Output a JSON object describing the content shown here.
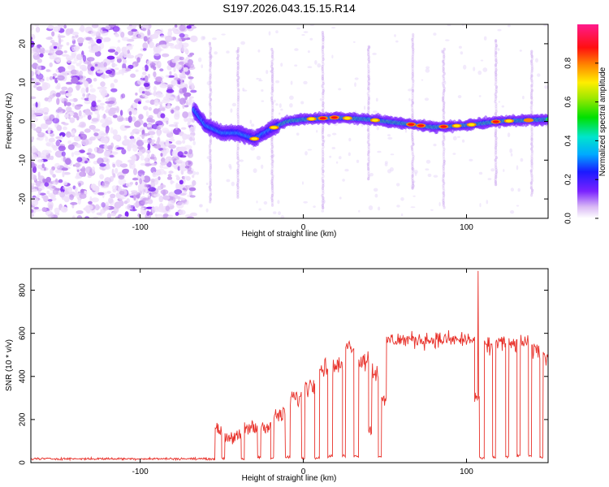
{
  "title": "S197.2026.043.15.15.R14",
  "chart_data": [
    {
      "type": "heatmap",
      "xlabel": "Height of straight line (km)",
      "ylabel": "Frequency (Hz)",
      "xlim": [
        -167,
        150
      ],
      "ylim": [
        -25,
        25
      ],
      "xticks": [
        -100,
        0,
        100
      ],
      "yticks": [
        20,
        10,
        0,
        -10,
        -20
      ],
      "xtick_labels": [
        "-100",
        "0",
        "100"
      ],
      "ytick_labels": [
        "20",
        "10",
        "0",
        "-10",
        "-20"
      ],
      "colorbar": {
        "label": "Normalized spectral amplitude",
        "range": [
          0,
          1
        ],
        "ticks": [
          0.0,
          0.2,
          0.4,
          0.6,
          0.8
        ],
        "tick_labels": [
          "0.0",
          "0.2",
          "0.4",
          "0.6",
          "0.8"
        ]
      },
      "ridge": {
        "noise_until_km": -67,
        "centerline": [
          {
            "x": -67,
            "y": 3
          },
          {
            "x": -60,
            "y": -1
          },
          {
            "x": -50,
            "y": -3
          },
          {
            "x": -40,
            "y": -3
          },
          {
            "x": -30,
            "y": -4.5
          },
          {
            "x": -20,
            "y": -2
          },
          {
            "x": -10,
            "y": 0
          },
          {
            "x": 0,
            "y": 0.5
          },
          {
            "x": 20,
            "y": 1
          },
          {
            "x": 40,
            "y": 0.5
          },
          {
            "x": 60,
            "y": -0.5
          },
          {
            "x": 80,
            "y": -1.5
          },
          {
            "x": 100,
            "y": -1
          },
          {
            "x": 120,
            "y": 0
          },
          {
            "x": 150,
            "y": 0.5
          }
        ]
      },
      "spikes_km": [
        -57,
        -40,
        -19,
        12,
        40,
        67,
        86,
        118,
        140
      ]
    },
    {
      "type": "line",
      "xlabel": "Height of straight line (km)",
      "ylabel": "SNR (10 * v/v)",
      "xlim": [
        -167,
        150
      ],
      "ylim": [
        0,
        900
      ],
      "xticks": [
        -100,
        0,
        100
      ],
      "yticks": [
        0,
        200,
        400,
        600,
        800
      ],
      "xtick_labels": [
        "-100",
        "0",
        "100"
      ],
      "ytick_labels": [
        "0",
        "200",
        "400",
        "600",
        "800"
      ],
      "color": "#e8312a",
      "segments": [
        {
          "x0": -167,
          "x1": -54,
          "level": 18,
          "noise": 8
        },
        {
          "x0": -54,
          "x1": -50,
          "level": 150,
          "noise": 45
        },
        {
          "x0": -50,
          "x1": -48,
          "level": 20,
          "noise": 8
        },
        {
          "x0": -48,
          "x1": -38,
          "level": 120,
          "noise": 50
        },
        {
          "x0": -38,
          "x1": -36,
          "level": 15,
          "noise": 8
        },
        {
          "x0": -36,
          "x1": -28,
          "level": 160,
          "noise": 60
        },
        {
          "x0": -28,
          "x1": -26,
          "level": 25,
          "noise": 10
        },
        {
          "x0": -26,
          "x1": -20,
          "level": 170,
          "noise": 50
        },
        {
          "x0": -20,
          "x1": -18,
          "level": 20,
          "noise": 8
        },
        {
          "x0": -18,
          "x1": -11,
          "level": 220,
          "noise": 60
        },
        {
          "x0": -11,
          "x1": -8,
          "level": 25,
          "noise": 10
        },
        {
          "x0": -8,
          "x1": -1,
          "level": 300,
          "noise": 70
        },
        {
          "x0": -1,
          "x1": 1,
          "level": 20,
          "noise": 8
        },
        {
          "x0": 1,
          "x1": 7,
          "level": 360,
          "noise": 80
        },
        {
          "x0": 7,
          "x1": 10,
          "level": 25,
          "noise": 10
        },
        {
          "x0": 10,
          "x1": 15,
          "level": 440,
          "noise": 70
        },
        {
          "x0": 15,
          "x1": 18,
          "level": 30,
          "noise": 10
        },
        {
          "x0": 18,
          "x1": 24,
          "level": 450,
          "noise": 60
        },
        {
          "x0": 24,
          "x1": 26,
          "level": 30,
          "noise": 10
        },
        {
          "x0": 26,
          "x1": 31,
          "level": 540,
          "noise": 50
        },
        {
          "x0": 31,
          "x1": 34,
          "level": 30,
          "noise": 10
        },
        {
          "x0": 34,
          "x1": 40,
          "level": 480,
          "noise": 80
        },
        {
          "x0": 40,
          "x1": 42,
          "level": 150,
          "noise": 40
        },
        {
          "x0": 42,
          "x1": 46,
          "level": 420,
          "noise": 80
        },
        {
          "x0": 46,
          "x1": 48,
          "level": 30,
          "noise": 10
        },
        {
          "x0": 48,
          "x1": 51,
          "level": 280,
          "noise": 60
        },
        {
          "x0": 51,
          "x1": 105,
          "level": 570,
          "noise": 55
        },
        {
          "x0": 105,
          "x1": 108,
          "level": 300,
          "noise": 60
        },
        {
          "x0": 108,
          "x1": 111,
          "level": 20,
          "noise": 8
        },
        {
          "x0": 111,
          "x1": 116,
          "level": 540,
          "noise": 60
        },
        {
          "x0": 116,
          "x1": 118,
          "level": 25,
          "noise": 10
        },
        {
          "x0": 118,
          "x1": 124,
          "level": 560,
          "noise": 60
        },
        {
          "x0": 124,
          "x1": 126,
          "level": 25,
          "noise": 10
        },
        {
          "x0": 126,
          "x1": 131,
          "level": 550,
          "noise": 60
        },
        {
          "x0": 131,
          "x1": 133,
          "level": 30,
          "noise": 10
        },
        {
          "x0": 133,
          "x1": 138,
          "level": 560,
          "noise": 50
        },
        {
          "x0": 138,
          "x1": 140,
          "level": 30,
          "noise": 10
        },
        {
          "x0": 140,
          "x1": 145,
          "level": 520,
          "noise": 60
        },
        {
          "x0": 145,
          "x1": 147,
          "level": 25,
          "noise": 10
        },
        {
          "x0": 147,
          "x1": 150,
          "level": 490,
          "noise": 50
        }
      ],
      "peak": {
        "x": 107,
        "y": 890
      }
    }
  ]
}
